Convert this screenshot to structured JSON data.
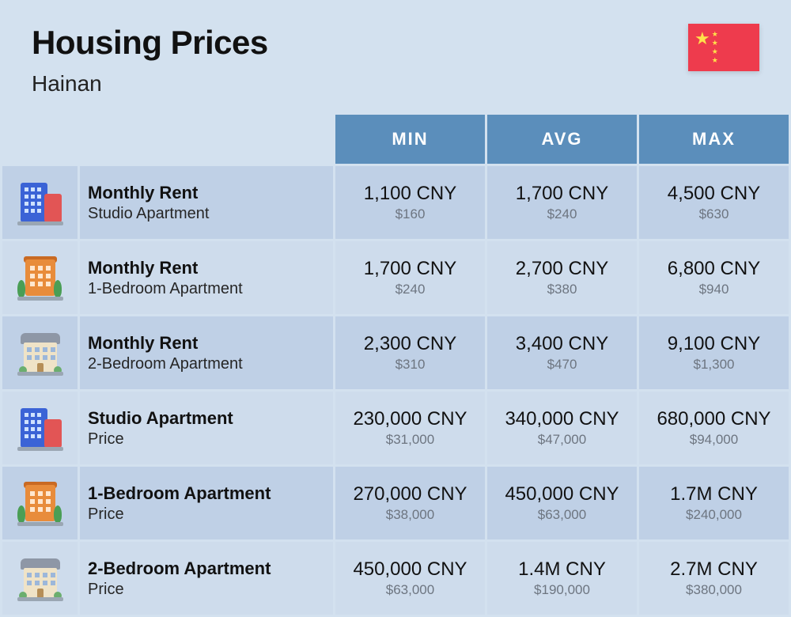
{
  "header": {
    "title": "Housing Prices",
    "location": "Hainan",
    "flag": {
      "country": "China",
      "bg_color": "#ee3b4d",
      "star_color": "#ffe14a"
    }
  },
  "columns": {
    "min": "MIN",
    "avg": "AVG",
    "max": "MAX"
  },
  "colors": {
    "page_bg": "#d3e1ef",
    "header_row_bg": "#5b8ebb",
    "header_row_text": "#ffffff",
    "row_odd_bg": "#bfd0e6",
    "row_even_bg": "#cedcec",
    "title_text": "#111111",
    "sub_text": "#6d7580"
  },
  "rows": [
    {
      "icon": "studio",
      "title": "Monthly Rent",
      "subtitle": "Studio Apartment",
      "min": {
        "cny": "1,100 CNY",
        "usd": "$160"
      },
      "avg": {
        "cny": "1,700 CNY",
        "usd": "$240"
      },
      "max": {
        "cny": "4,500 CNY",
        "usd": "$630"
      }
    },
    {
      "icon": "onebr",
      "title": "Monthly Rent",
      "subtitle": "1-Bedroom Apartment",
      "min": {
        "cny": "1,700 CNY",
        "usd": "$240"
      },
      "avg": {
        "cny": "2,700 CNY",
        "usd": "$380"
      },
      "max": {
        "cny": "6,800 CNY",
        "usd": "$940"
      }
    },
    {
      "icon": "twobr",
      "title": "Monthly Rent",
      "subtitle": "2-Bedroom Apartment",
      "min": {
        "cny": "2,300 CNY",
        "usd": "$310"
      },
      "avg": {
        "cny": "3,400 CNY",
        "usd": "$470"
      },
      "max": {
        "cny": "9,100 CNY",
        "usd": "$1,300"
      }
    },
    {
      "icon": "studio",
      "title": "Studio Apartment",
      "subtitle": "Price",
      "min": {
        "cny": "230,000 CNY",
        "usd": "$31,000"
      },
      "avg": {
        "cny": "340,000 CNY",
        "usd": "$47,000"
      },
      "max": {
        "cny": "680,000 CNY",
        "usd": "$94,000"
      }
    },
    {
      "icon": "onebr",
      "title": "1-Bedroom Apartment",
      "subtitle": "Price",
      "min": {
        "cny": "270,000 CNY",
        "usd": "$38,000"
      },
      "avg": {
        "cny": "450,000 CNY",
        "usd": "$63,000"
      },
      "max": {
        "cny": "1.7M CNY",
        "usd": "$240,000"
      }
    },
    {
      "icon": "twobr",
      "title": "2-Bedroom Apartment",
      "subtitle": "Price",
      "min": {
        "cny": "450,000 CNY",
        "usd": "$63,000"
      },
      "avg": {
        "cny": "1.4M CNY",
        "usd": "$190,000"
      },
      "max": {
        "cny": "2.7M CNY",
        "usd": "$380,000"
      }
    }
  ]
}
